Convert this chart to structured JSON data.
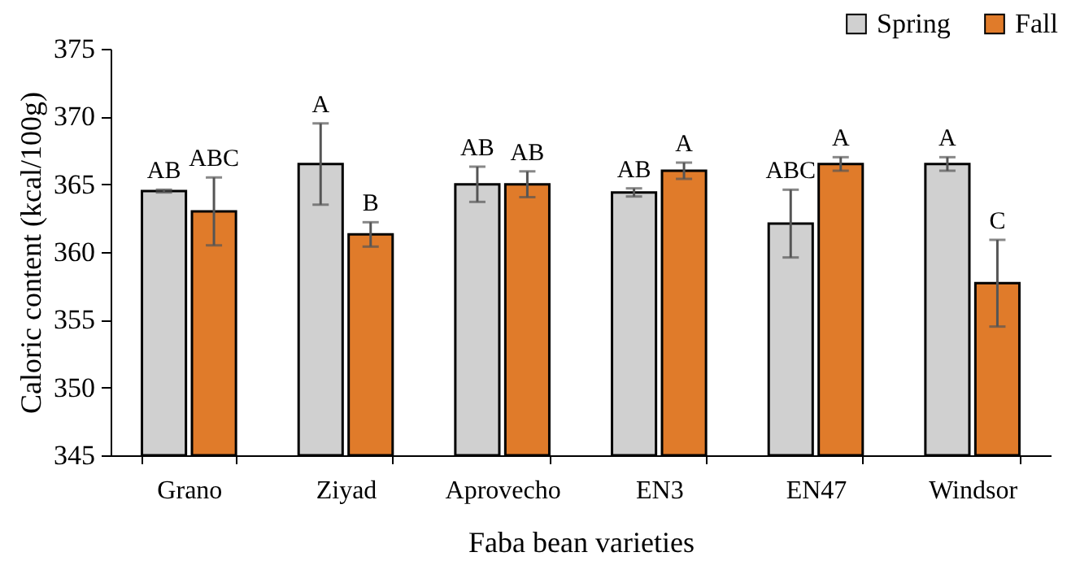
{
  "chart_data": {
    "type": "bar",
    "xlabel": "Faba bean varieties",
    "ylabel": "Caloric content (kcal/100g)",
    "categories": [
      "Grano",
      "Ziyad",
      "Aprovecho",
      "EN3",
      "EN47",
      "Windsor"
    ],
    "series": [
      {
        "name": "Spring",
        "color": "#d0d0d0",
        "values": [
          364.5,
          366.5,
          365.0,
          364.4,
          362.1,
          366.5
        ],
        "errors": [
          0.1,
          3.0,
          1.3,
          0.3,
          2.5,
          0.5
        ],
        "value_labels": [
          "AB",
          "A",
          "AB",
          "AB",
          "ABC",
          "A"
        ]
      },
      {
        "name": "Fall",
        "color": "#e07b2a",
        "values": [
          363.0,
          361.3,
          365.0,
          366.0,
          366.5,
          357.7
        ],
        "errors": [
          2.5,
          0.9,
          0.95,
          0.6,
          0.5,
          3.2
        ],
        "value_labels": [
          "ABC",
          "B",
          "AB",
          "A",
          "A",
          "C"
        ]
      }
    ],
    "ylim": [
      345,
      375
    ],
    "yticks": [
      345,
      350,
      355,
      360,
      365,
      370,
      375
    ],
    "legend": "top right",
    "grid": false
  }
}
